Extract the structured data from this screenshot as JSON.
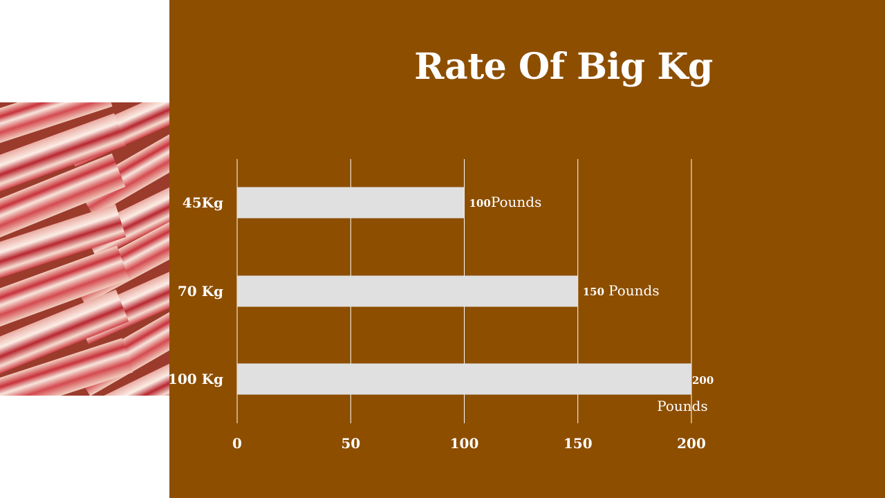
{
  "slide": {
    "title": "Rate Of Big Kg",
    "background_color": "#8d4e00",
    "side_image": "bacon-photo"
  },
  "chart_data": {
    "type": "bar",
    "orientation": "horizontal",
    "categories": [
      "45Kg",
      "70 Kg",
      "100 Kg"
    ],
    "values": [
      100,
      150,
      200
    ],
    "data_labels": [
      {
        "number": "100",
        "unit": "Pounds"
      },
      {
        "number": "150",
        "unit": "Pounds"
      },
      {
        "number": "200",
        "unit": "Pounds"
      }
    ],
    "xlim": [
      0,
      200
    ],
    "x_ticks": [
      "0",
      "50",
      "100",
      "150",
      "200"
    ],
    "grid": "vertical",
    "legend": "none",
    "bar_color": "#e0e0e0",
    "text_color": "#ffffff"
  }
}
